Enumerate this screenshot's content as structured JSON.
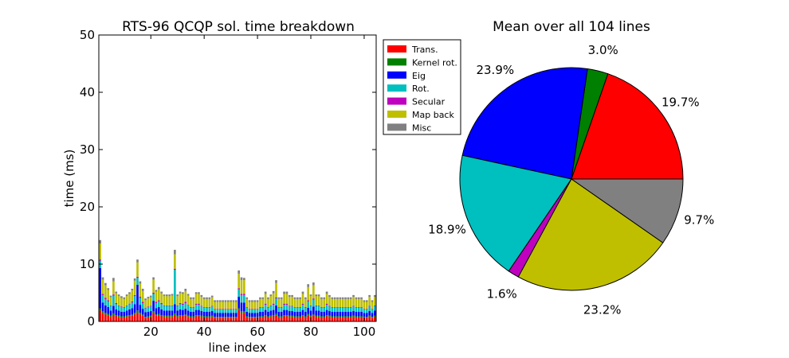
{
  "chart_data": [
    {
      "type": "bar",
      "stacked": true,
      "title": "RTS-96 QCQP sol. time breakdown",
      "xlabel": "line index",
      "ylabel": "time (ms)",
      "xlim": [
        0.5,
        104.5
      ],
      "ylim": [
        0,
        50
      ],
      "yticks": [
        0,
        10,
        20,
        30,
        40,
        50
      ],
      "xticks": [
        20,
        40,
        60,
        80,
        100
      ],
      "grid": false,
      "legend": "outside-right",
      "x": [
        1,
        2,
        3,
        4,
        5,
        6,
        7,
        8,
        9,
        10,
        11,
        12,
        13,
        14,
        15,
        16,
        17,
        18,
        19,
        20,
        21,
        22,
        23,
        24,
        25,
        26,
        27,
        28,
        29,
        30,
        31,
        32,
        33,
        34,
        35,
        36,
        37,
        38,
        39,
        40,
        41,
        42,
        43,
        44,
        45,
        46,
        47,
        48,
        49,
        50,
        51,
        52,
        53,
        54,
        55,
        56,
        57,
        58,
        59,
        60,
        61,
        62,
        63,
        64,
        65,
        66,
        67,
        68,
        69,
        70,
        71,
        72,
        73,
        74,
        75,
        76,
        77,
        78,
        79,
        80,
        81,
        82,
        83,
        84,
        85,
        86,
        87,
        88,
        89,
        90,
        91,
        92,
        93,
        94,
        95,
        96,
        97,
        98,
        99,
        100,
        101,
        102,
        103,
        104
      ],
      "series": [
        {
          "name": "Trans.",
          "color": "#ff0000",
          "values": [
            1.9,
            1.5,
            1.2,
            1.0,
            0.8,
            1.1,
            0.9,
            0.8,
            0.7,
            0.7,
            0.8,
            0.9,
            1.0,
            1.2,
            1.5,
            1.2,
            1.0,
            0.6,
            0.7,
            0.8,
            1.5,
            1.0,
            1.0,
            0.9,
            0.8,
            0.8,
            0.8,
            0.8,
            1.1,
            0.8,
            0.9,
            0.9,
            1.0,
            0.8,
            0.7,
            0.7,
            0.9,
            0.9,
            0.8,
            0.7,
            0.7,
            0.7,
            0.8,
            0.6,
            0.6,
            0.6,
            0.6,
            0.6,
            0.6,
            0.6,
            0.6,
            0.6,
            2.0,
            1.5,
            1.5,
            0.7,
            0.6,
            0.6,
            0.6,
            0.6,
            0.7,
            0.7,
            0.9,
            0.7,
            0.8,
            0.9,
            1.0,
            0.7,
            0.7,
            0.9,
            0.9,
            0.8,
            0.8,
            0.7,
            0.7,
            0.7,
            0.9,
            0.7,
            1.0,
            0.8,
            1.0,
            0.8,
            0.8,
            0.7,
            0.7,
            0.9,
            0.8,
            0.7,
            0.7,
            0.7,
            0.7,
            0.7,
            0.7,
            0.7,
            0.7,
            0.8,
            0.7,
            0.7,
            0.7,
            0.6,
            0.6,
            0.8,
            0.6,
            0.8
          ]
        },
        {
          "name": "Kernel rot.",
          "color": "#008000",
          "values": [
            0.4,
            0.3,
            0.3,
            0.3,
            0.2,
            0.3,
            0.2,
            0.2,
            0.2,
            0.2,
            0.2,
            0.2,
            0.2,
            0.3,
            0.4,
            0.3,
            0.2,
            0.2,
            0.2,
            0.2,
            0.3,
            0.2,
            0.3,
            0.2,
            0.2,
            0.2,
            0.2,
            0.2,
            0.3,
            0.2,
            0.2,
            0.2,
            0.2,
            0.2,
            0.2,
            0.2,
            0.2,
            0.2,
            0.2,
            0.2,
            0.2,
            0.2,
            0.2,
            0.2,
            0.2,
            0.2,
            0.2,
            0.2,
            0.2,
            0.2,
            0.2,
            0.2,
            0.3,
            0.3,
            0.3,
            0.2,
            0.2,
            0.2,
            0.2,
            0.2,
            0.2,
            0.2,
            0.2,
            0.2,
            0.2,
            0.2,
            0.3,
            0.2,
            0.2,
            0.2,
            0.2,
            0.2,
            0.2,
            0.2,
            0.2,
            0.2,
            0.2,
            0.2,
            0.3,
            0.2,
            0.2,
            0.2,
            0.2,
            0.2,
            0.2,
            0.2,
            0.2,
            0.2,
            0.2,
            0.2,
            0.2,
            0.2,
            0.2,
            0.2,
            0.2,
            0.2,
            0.2,
            0.2,
            0.2,
            0.2,
            0.2,
            0.2,
            0.2,
            0.2
          ]
        },
        {
          "name": "Eig",
          "color": "#0000ff",
          "values": [
            7.0,
            1.5,
            1.3,
            1.2,
            0.9,
            1.3,
            1.0,
            0.9,
            0.8,
            0.8,
            0.9,
            1.0,
            1.1,
            1.5,
            4.5,
            1.4,
            1.0,
            0.8,
            0.8,
            0.8,
            1.8,
            1.1,
            1.2,
            1.0,
            0.9,
            0.9,
            0.9,
            0.9,
            1.6,
            0.9,
            1.0,
            0.9,
            1.0,
            0.9,
            0.8,
            0.8,
            0.9,
            0.9,
            0.8,
            0.8,
            0.8,
            0.8,
            0.8,
            0.7,
            0.7,
            0.7,
            0.7,
            0.7,
            0.7,
            0.7,
            0.7,
            0.7,
            2.0,
            1.5,
            1.5,
            0.8,
            0.7,
            0.7,
            0.7,
            0.7,
            0.8,
            0.8,
            0.9,
            0.8,
            0.9,
            0.9,
            1.5,
            0.8,
            0.8,
            0.9,
            0.9,
            0.8,
            0.8,
            0.8,
            0.8,
            0.8,
            0.9,
            0.8,
            1.1,
            0.9,
            1.4,
            0.9,
            0.9,
            0.8,
            0.8,
            0.9,
            0.8,
            0.8,
            0.8,
            0.8,
            0.8,
            0.8,
            0.8,
            0.8,
            0.8,
            0.8,
            0.8,
            0.8,
            0.8,
            0.7,
            0.7,
            0.8,
            0.7,
            0.9
          ]
        },
        {
          "name": "Rot.",
          "color": "#00bfbf",
          "values": [
            1.3,
            1.3,
            1.1,
            1.0,
            0.8,
            1.8,
            0.9,
            0.8,
            0.8,
            0.7,
            0.8,
            0.9,
            1.0,
            1.4,
            1.2,
            1.2,
            1.0,
            0.7,
            0.8,
            0.8,
            1.2,
            0.9,
            1.0,
            0.9,
            0.8,
            0.8,
            0.8,
            0.8,
            6.0,
            0.8,
            0.9,
            0.9,
            1.0,
            0.9,
            0.7,
            0.7,
            0.9,
            0.9,
            0.8,
            0.7,
            0.7,
            0.7,
            0.8,
            0.6,
            0.6,
            0.6,
            0.6,
            0.6,
            0.6,
            0.6,
            0.6,
            0.6,
            1.3,
            1.3,
            1.3,
            0.7,
            0.6,
            0.6,
            0.6,
            0.6,
            0.7,
            0.7,
            0.9,
            0.7,
            0.8,
            0.9,
            1.2,
            0.7,
            0.7,
            0.9,
            0.9,
            0.8,
            0.8,
            0.7,
            0.7,
            0.7,
            0.9,
            0.7,
            1.1,
            0.8,
            1.2,
            0.8,
            0.8,
            0.7,
            0.7,
            0.9,
            0.8,
            0.7,
            0.7,
            0.7,
            0.7,
            0.7,
            0.7,
            0.7,
            0.7,
            0.8,
            0.7,
            0.7,
            0.7,
            0.6,
            0.6,
            0.8,
            0.6,
            0.8
          ]
        },
        {
          "name": "Secular",
          "color": "#bf00bf",
          "values": [
            0.2,
            0.2,
            0.2,
            0.2,
            0.1,
            0.2,
            0.2,
            0.1,
            0.1,
            0.1,
            0.1,
            0.1,
            0.2,
            0.2,
            0.2,
            0.2,
            0.2,
            0.1,
            0.1,
            0.1,
            0.2,
            0.2,
            0.2,
            0.2,
            0.1,
            0.1,
            0.1,
            0.1,
            0.2,
            0.1,
            0.2,
            0.2,
            0.2,
            0.1,
            0.1,
            0.1,
            0.2,
            0.2,
            0.1,
            0.1,
            0.1,
            0.1,
            0.1,
            0.1,
            0.1,
            0.1,
            0.1,
            0.1,
            0.1,
            0.1,
            0.1,
            0.1,
            0.2,
            0.2,
            0.2,
            0.1,
            0.1,
            0.1,
            0.1,
            0.1,
            0.1,
            0.1,
            0.2,
            0.1,
            0.1,
            0.2,
            0.2,
            0.1,
            0.1,
            0.2,
            0.2,
            0.1,
            0.1,
            0.1,
            0.1,
            0.1,
            0.2,
            0.1,
            0.2,
            0.1,
            0.2,
            0.1,
            0.1,
            0.1,
            0.1,
            0.2,
            0.1,
            0.1,
            0.1,
            0.1,
            0.1,
            0.1,
            0.1,
            0.1,
            0.1,
            0.1,
            0.1,
            0.1,
            0.1,
            0.1,
            0.1,
            0.1,
            0.1,
            0.1
          ]
        },
        {
          "name": "Map back",
          "color": "#bfbf00",
          "values": [
            2.8,
            2.5,
            2.2,
            1.8,
            1.4,
            2.3,
            1.7,
            1.6,
            1.5,
            1.4,
            1.6,
            1.7,
            1.9,
            2.5,
            2.5,
            2.3,
            1.9,
            1.3,
            1.4,
            1.5,
            2.3,
            1.8,
            1.9,
            1.7,
            1.6,
            1.6,
            1.6,
            1.7,
            2.5,
            1.6,
            1.7,
            1.7,
            1.9,
            1.6,
            1.4,
            1.4,
            1.7,
            1.7,
            1.6,
            1.4,
            1.4,
            1.4,
            1.5,
            1.2,
            1.2,
            1.2,
            1.2,
            1.2,
            1.2,
            1.2,
            1.2,
            1.2,
            2.5,
            2.4,
            2.4,
            1.4,
            1.2,
            1.2,
            1.2,
            1.2,
            1.4,
            1.4,
            1.7,
            1.4,
            1.6,
            1.8,
            2.5,
            1.4,
            1.4,
            1.7,
            1.7,
            1.6,
            1.6,
            1.4,
            1.4,
            1.4,
            1.7,
            1.4,
            2.3,
            1.6,
            2.3,
            1.6,
            1.6,
            1.4,
            1.4,
            1.7,
            1.6,
            1.4,
            1.4,
            1.4,
            1.4,
            1.4,
            1.4,
            1.4,
            1.4,
            1.6,
            1.4,
            1.4,
            1.4,
            1.2,
            1.2,
            1.6,
            1.2,
            1.5
          ]
        },
        {
          "name": "Misc",
          "color": "#808080",
          "values": [
            0.6,
            0.4,
            0.4,
            0.3,
            0.3,
            0.6,
            0.3,
            0.3,
            0.3,
            0.3,
            0.3,
            0.3,
            0.3,
            0.4,
            0.5,
            0.4,
            0.4,
            0.3,
            0.3,
            0.3,
            0.4,
            0.3,
            0.4,
            0.3,
            0.3,
            0.3,
            0.3,
            0.3,
            0.8,
            0.3,
            0.3,
            0.3,
            0.4,
            0.3,
            0.3,
            0.3,
            0.3,
            0.3,
            0.3,
            0.3,
            0.3,
            0.3,
            0.3,
            0.3,
            0.3,
            0.3,
            0.3,
            0.3,
            0.3,
            0.3,
            0.3,
            0.3,
            0.6,
            0.5,
            0.4,
            0.3,
            0.3,
            0.3,
            0.3,
            0.3,
            0.3,
            0.3,
            0.4,
            0.3,
            0.3,
            0.4,
            0.5,
            0.3,
            0.3,
            0.4,
            0.4,
            0.3,
            0.3,
            0.3,
            0.3,
            0.3,
            0.4,
            0.3,
            0.5,
            0.3,
            0.5,
            0.3,
            0.3,
            0.3,
            0.3,
            0.4,
            0.3,
            0.3,
            0.3,
            0.3,
            0.3,
            0.3,
            0.3,
            0.3,
            0.3,
            0.3,
            0.3,
            0.3,
            0.3,
            0.3,
            0.3,
            0.3,
            0.3,
            0.3
          ]
        }
      ]
    },
    {
      "type": "pie",
      "title": "Mean over all 104 lines",
      "start_angle_deg": 0,
      "direction": "counterclockwise",
      "slices": [
        {
          "name": "Trans.",
          "value": 19.7,
          "label": "19.7%",
          "color": "#ff0000"
        },
        {
          "name": "Kernel rot.",
          "value": 3.0,
          "label": "3.0%",
          "color": "#008000"
        },
        {
          "name": "Eig",
          "value": 23.9,
          "label": "23.9%",
          "color": "#0000ff"
        },
        {
          "name": "Rot.",
          "value": 18.9,
          "label": "18.9%",
          "color": "#00bfbf"
        },
        {
          "name": "Secular",
          "value": 1.6,
          "label": "1.6%",
          "color": "#bf00bf"
        },
        {
          "name": "Map back",
          "value": 23.2,
          "label": "23.2%",
          "color": "#bfbf00"
        },
        {
          "name": "Misc",
          "value": 9.7,
          "label": "9.7%",
          "color": "#808080"
        }
      ]
    }
  ]
}
